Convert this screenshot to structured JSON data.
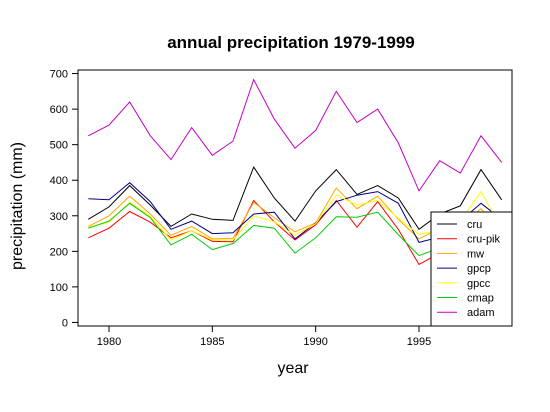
{
  "chart_data": {
    "type": "line",
    "title": "annual precipitation 1979-1999",
    "xlabel": "year",
    "ylabel": "precipitation (mm)",
    "xlim": [
      1978.5,
      1999.5
    ],
    "ylim": [
      -10,
      710
    ],
    "x_ticks": [
      1980,
      1985,
      1990,
      1995
    ],
    "y_ticks": [
      0,
      100,
      200,
      300,
      400,
      500,
      600,
      700
    ],
    "grid": false,
    "legend_position": "bottom-right",
    "x": [
      1979,
      1980,
      1981,
      1982,
      1983,
      1984,
      1985,
      1986,
      1987,
      1988,
      1989,
      1990,
      1991,
      1992,
      1993,
      1994,
      1995,
      1996,
      1997,
      1998,
      1999
    ],
    "series": [
      {
        "name": "cru",
        "color": "#000000",
        "values": [
          290,
          325,
          385,
          330,
          270,
          305,
          290,
          287,
          437,
          350,
          285,
          370,
          430,
          360,
          385,
          350,
          262,
          305,
          328,
          430,
          345
        ]
      },
      {
        "name": "cru-pik",
        "color": "#ff0000",
        "values": [
          238,
          265,
          312,
          282,
          238,
          258,
          228,
          227,
          343,
          283,
          232,
          275,
          343,
          268,
          340,
          262,
          163,
          195,
          198,
          300,
          235
        ]
      },
      {
        "name": "mw",
        "color": "#ffa500",
        "values": [
          270,
          300,
          355,
          305,
          245,
          270,
          235,
          237,
          338,
          295,
          255,
          280,
          378,
          320,
          355,
          290,
          235,
          265,
          270,
          320,
          255
        ]
      },
      {
        "name": "gpcp",
        "color": "#00008b",
        "values": [
          348,
          345,
          393,
          340,
          262,
          285,
          250,
          252,
          305,
          310,
          235,
          280,
          340,
          358,
          368,
          335,
          225,
          240,
          285,
          335,
          290
        ]
      },
      {
        "name": "gpcc",
        "color": "#ffff00",
        "values": [
          268,
          282,
          338,
          298,
          232,
          258,
          232,
          232,
          300,
          283,
          245,
          278,
          358,
          330,
          343,
          293,
          248,
          258,
          283,
          368,
          262
        ]
      },
      {
        "name": "cmap",
        "color": "#00cc00",
        "values": [
          265,
          285,
          335,
          295,
          218,
          248,
          205,
          222,
          273,
          265,
          195,
          238,
          297,
          296,
          310,
          247,
          188,
          210,
          220,
          300,
          215
        ]
      },
      {
        "name": "adam",
        "color": "#c000c0",
        "values": [
          525,
          555,
          620,
          525,
          458,
          548,
          470,
          510,
          683,
          572,
          490,
          540,
          650,
          562,
          600,
          505,
          370,
          455,
          420,
          525,
          450
        ]
      }
    ]
  }
}
